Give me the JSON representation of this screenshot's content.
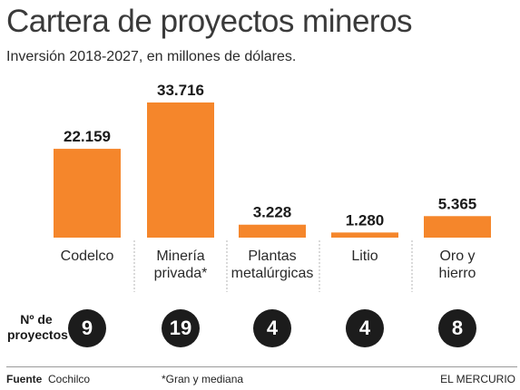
{
  "header": {
    "title": "Cartera de proyectos mineros",
    "subtitle": "Inversión 2018-2027, en millones de dólares."
  },
  "chart_data": {
    "type": "bar",
    "categories": [
      [
        "Codelco"
      ],
      [
        "Minería",
        "privada*"
      ],
      [
        "Plantas",
        "metalúrgicas"
      ],
      [
        "Litio"
      ],
      [
        "Oro y",
        "hierro"
      ]
    ],
    "values": [
      22159,
      33716,
      3228,
      1280,
      5365
    ],
    "value_labels": [
      "22.159",
      "33.716",
      "3.228",
      "1.280",
      "5.365"
    ],
    "ylim": [
      0,
      33716
    ],
    "bar_color": "#f5862b",
    "grid": false
  },
  "projects": {
    "label_line1": "Nº de",
    "label_line2": "proyectos",
    "counts": [
      "9",
      "19",
      "4",
      "4",
      "8"
    ]
  },
  "footer": {
    "source_label": "Fuente",
    "source_value": "Cochilco",
    "note": "*Gran y mediana",
    "brand": "EL MERCURIO"
  }
}
